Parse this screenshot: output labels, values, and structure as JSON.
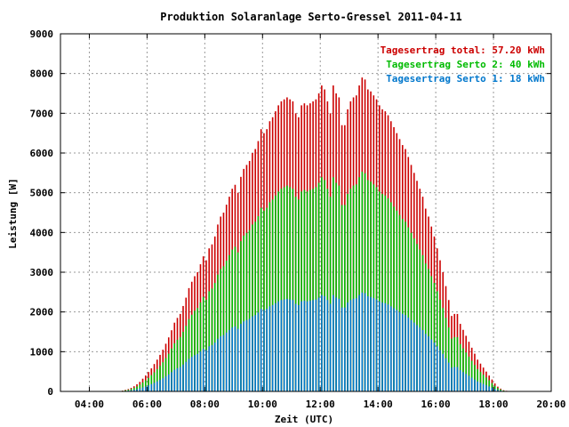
{
  "chart_data": {
    "type": "bar",
    "title": "Produktion Solaranlage Serto-Gressel 2011-04-11",
    "xlabel": "Zeit (UTC)",
    "ylabel": "Leistung [W]",
    "xlim": [
      3.0,
      20.0
    ],
    "ylim": [
      0,
      9000
    ],
    "x_ticks": [
      "04:00",
      "06:00",
      "08:00",
      "10:00",
      "12:00",
      "14:00",
      "16:00",
      "18:00",
      "20:00"
    ],
    "y_ticks": [
      "0",
      "1000",
      "2000",
      "3000",
      "4000",
      "5000",
      "6000",
      "7000",
      "8000",
      "9000"
    ],
    "grid": true,
    "legend_position": "top-right",
    "series": [
      {
        "name": "Tagesertrag total: 57.20 kWh",
        "color": "#cc0000",
        "x_start": 5.05,
        "x_step": 0.1,
        "values": [
          10,
          20,
          40,
          60,
          90,
          130,
          180,
          240,
          320,
          400,
          490,
          580,
          690,
          800,
          920,
          1050,
          1200,
          1360,
          1540,
          1730,
          1850,
          1950,
          2150,
          2360,
          2600,
          2760,
          2900,
          3000,
          3200,
          3400,
          3300,
          3600,
          3700,
          3900,
          4200,
          4400,
          4500,
          4700,
          4900,
          5100,
          5200,
          5000,
          5400,
          5600,
          5700,
          5800,
          6000,
          6100,
          6300,
          6600,
          6500,
          6600,
          6800,
          6900,
          7050,
          7200,
          7300,
          7350,
          7400,
          7350,
          7300,
          7000,
          6900,
          7200,
          7250,
          7200,
          7250,
          7300,
          7350,
          7500,
          7700,
          7600,
          7300,
          7000,
          7700,
          7500,
          7400,
          6700,
          6700,
          7100,
          7300,
          7400,
          7450,
          7700,
          7900,
          7850,
          7600,
          7550,
          7450,
          7350,
          7200,
          7100,
          7050,
          6950,
          6800,
          6650,
          6500,
          6350,
          6200,
          6100,
          5900,
          5700,
          5500,
          5300,
          5100,
          4900,
          4600,
          4400,
          4150,
          3900,
          3600,
          3300,
          3000,
          2650,
          2300,
          1900,
          1950,
          1950,
          1700,
          1550,
          1400,
          1250,
          1100,
          950,
          800,
          700,
          600,
          500,
          400,
          300,
          200,
          120,
          70,
          30,
          15
        ]
      },
      {
        "name": "Tagesertrag Serto 2: 40 kWh",
        "color": "#00bb00",
        "x_start": 5.05,
        "x_step": 0.1,
        "values": [
          7,
          14,
          28,
          42,
          63,
          90,
          125,
          170,
          225,
          280,
          340,
          410,
          480,
          560,
          645,
          735,
          840,
          950,
          1080,
          1210,
          1300,
          1370,
          1500,
          1650,
          1820,
          1930,
          2030,
          2100,
          2240,
          2380,
          2310,
          2520,
          2590,
          2730,
          2940,
          3080,
          3150,
          3290,
          3430,
          3570,
          3640,
          3500,
          3780,
          3920,
          3990,
          4060,
          4200,
          4270,
          4410,
          4620,
          4550,
          4620,
          4760,
          4830,
          4930,
          5030,
          5100,
          5140,
          5180,
          5140,
          5100,
          4900,
          4830,
          5030,
          5070,
          5030,
          5070,
          5100,
          5140,
          5250,
          5390,
          5320,
          5100,
          4900,
          5390,
          5250,
          5180,
          4690,
          4690,
          4970,
          5100,
          5180,
          5210,
          5390,
          5530,
          5490,
          5320,
          5280,
          5210,
          5140,
          5030,
          4970,
          4930,
          4860,
          4760,
          4650,
          4550,
          4440,
          4340,
          4270,
          4130,
          3990,
          3850,
          3710,
          3570,
          3430,
          3220,
          3080,
          2900,
          2730,
          2520,
          2310,
          2100,
          1850,
          1610,
          1330,
          1365,
          1365,
          1190,
          1085,
          980,
          875,
          770,
          665,
          560,
          490,
          420,
          350,
          280,
          210,
          140,
          84,
          49,
          21,
          10
        ]
      },
      {
        "name": "Tagesertrag Serto 1: 18 kWh",
        "color": "#0077cc",
        "x_start": 5.05,
        "x_step": 0.1,
        "values": [
          3,
          6,
          13,
          19,
          28,
          41,
          56,
          76,
          101,
          126,
          154,
          183,
          217,
          252,
          290,
          331,
          378,
          428,
          485,
          545,
          583,
          614,
          677,
          743,
          819,
          869,
          914,
          945,
          1008,
          1071,
          1040,
          1134,
          1166,
          1229,
          1323,
          1386,
          1418,
          1481,
          1544,
          1607,
          1638,
          1575,
          1701,
          1764,
          1796,
          1827,
          1890,
          1922,
          1985,
          2079,
          2048,
          2079,
          2142,
          2174,
          2221,
          2268,
          2300,
          2315,
          2331,
          2315,
          2300,
          2205,
          2174,
          2268,
          2284,
          2268,
          2284,
          2300,
          2315,
          2363,
          2426,
          2394,
          2300,
          2205,
          2426,
          2363,
          2331,
          2111,
          2111,
          2237,
          2300,
          2331,
          2347,
          2426,
          2489,
          2473,
          2394,
          2378,
          2347,
          2315,
          2268,
          2237,
          2221,
          2189,
          2142,
          2095,
          2048,
          2000,
          1953,
          1922,
          1859,
          1796,
          1733,
          1670,
          1607,
          1544,
          1449,
          1386,
          1307,
          1229,
          1134,
          1040,
          945,
          835,
          725,
          599,
          614,
          614,
          536,
          488,
          441,
          394,
          347,
          299,
          252,
          221,
          189,
          158,
          126,
          95,
          63,
          38,
          22,
          9,
          5
        ]
      }
    ]
  }
}
